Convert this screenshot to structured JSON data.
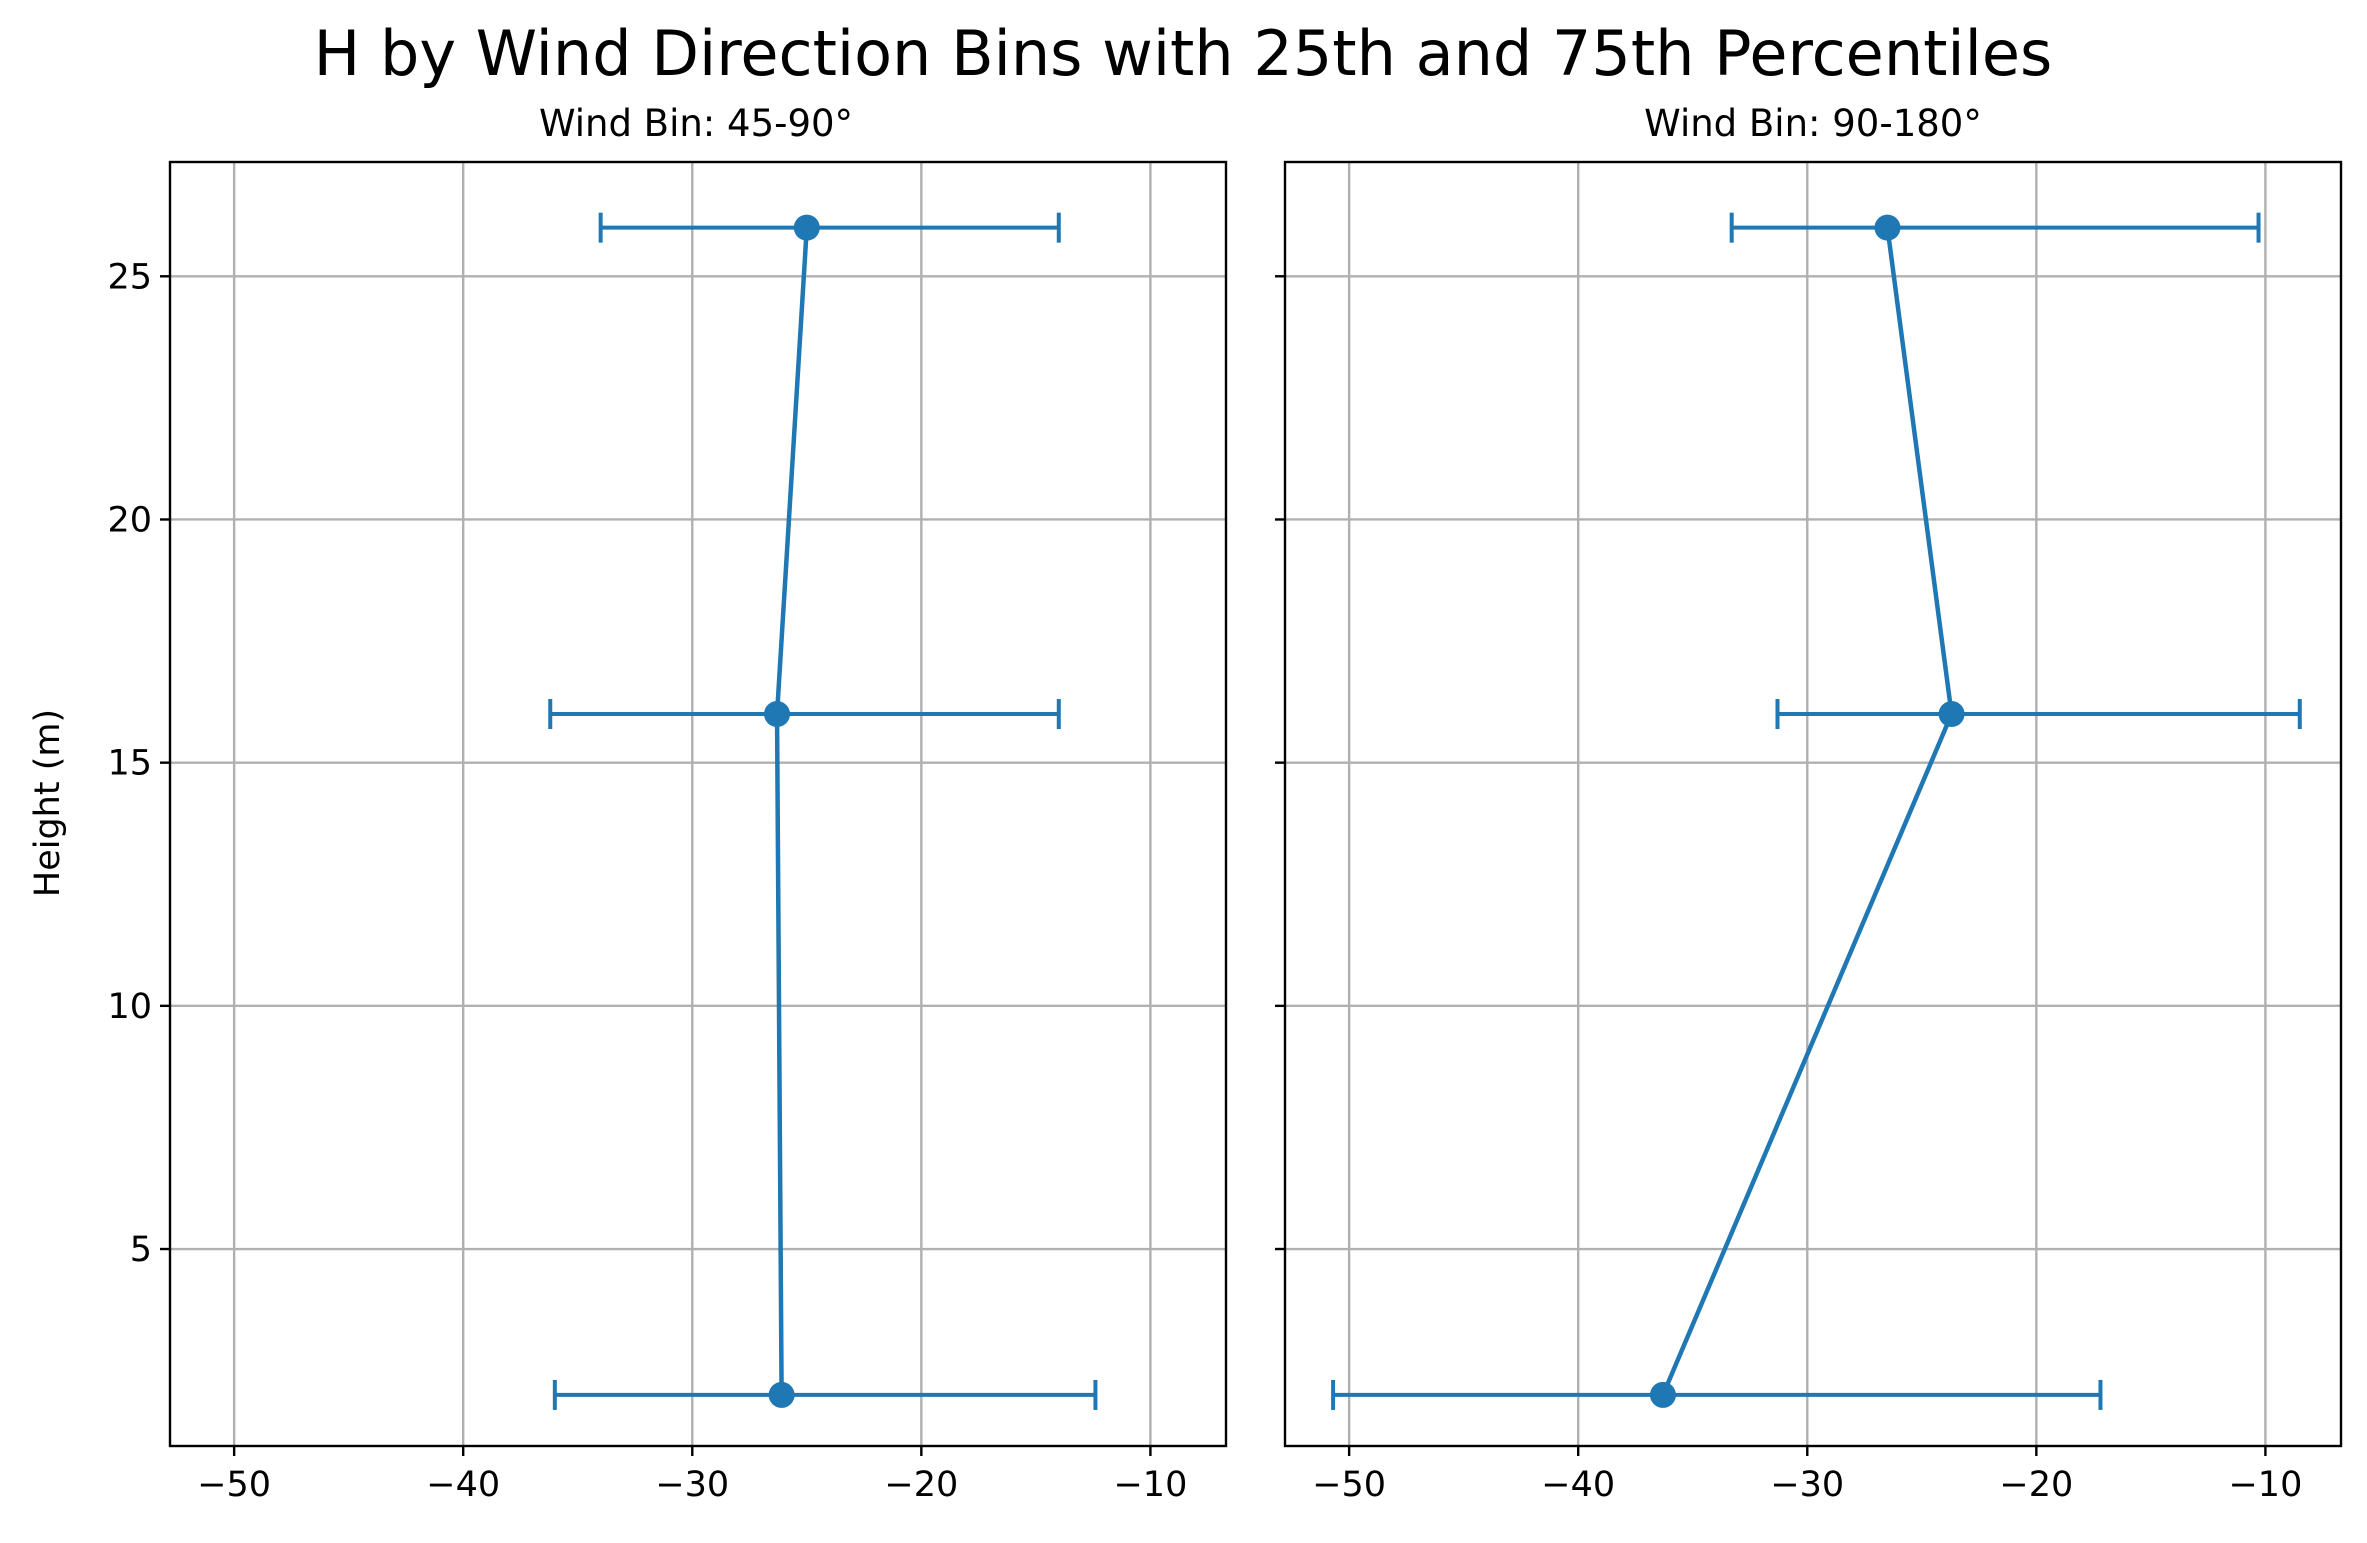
{
  "figure": {
    "title": "H by Wind Direction Bins with 25th and 75th Percentiles"
  },
  "chart_data": [
    {
      "type": "line",
      "title": "Wind Bin: 45-90°",
      "xlabel": "",
      "ylabel": "Height (m)",
      "xlim": [
        -52.8,
        -6.7
      ],
      "ylim": [
        0.95,
        27.35
      ],
      "xticks": [
        -50,
        -40,
        -30,
        -20,
        -10
      ],
      "xtick_labels": [
        "−50",
        "−40",
        "−30",
        "−20",
        "−10"
      ],
      "yticks": [
        5,
        10,
        15,
        20,
        25
      ],
      "ytick_labels": [
        "5",
        "10",
        "15",
        "20",
        "25"
      ],
      "grid": true,
      "color": "#1f77b4",
      "points": [
        {
          "height": 2,
          "median": -26.1,
          "p25": -36.0,
          "p75": -12.4
        },
        {
          "height": 16,
          "median": -26.3,
          "p25": -36.2,
          "p75": -14.0
        },
        {
          "height": 26,
          "median": -25.0,
          "p25": -34.0,
          "p75": -14.0
        }
      ]
    },
    {
      "type": "line",
      "title": "Wind Bin: 90-180°",
      "xlabel": "",
      "ylabel": "",
      "xlim": [
        -52.8,
        -6.7
      ],
      "ylim": [
        0.95,
        27.35
      ],
      "xticks": [
        -50,
        -40,
        -30,
        -20,
        -10
      ],
      "xtick_labels": [
        "−50",
        "−40",
        "−30",
        "−20",
        "−10"
      ],
      "yticks": [
        5,
        10,
        15,
        20,
        25
      ],
      "ytick_labels": [],
      "grid": true,
      "color": "#1f77b4",
      "points": [
        {
          "height": 2,
          "median": -36.3,
          "p25": -50.7,
          "p75": -17.2
        },
        {
          "height": 16,
          "median": -23.7,
          "p25": -31.3,
          "p75": -8.5
        },
        {
          "height": 26,
          "median": -26.5,
          "p25": -33.3,
          "p75": -10.3
        }
      ]
    }
  ]
}
